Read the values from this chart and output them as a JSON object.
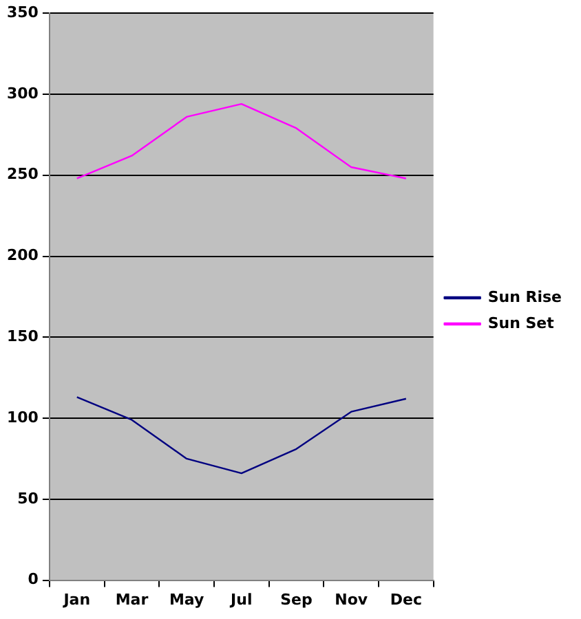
{
  "chart_data": {
    "type": "line",
    "categories": [
      "Jan",
      "Mar",
      "May",
      "Jul",
      "Sep",
      "Nov",
      "Dec"
    ],
    "series": [
      {
        "name": "Sun Rise",
        "color": "#000080",
        "values": [
          113,
          99,
          75,
          66,
          81,
          104,
          112
        ]
      },
      {
        "name": "Sun Set",
        "color": "#ff00ff",
        "values": [
          248,
          262,
          286,
          294,
          279,
          255,
          248
        ]
      }
    ],
    "ylim": [
      0,
      350
    ],
    "yticks": [
      0,
      50,
      100,
      150,
      200,
      250,
      300,
      350
    ],
    "grid": "y",
    "legend": "right",
    "marker": "none",
    "line_style": "solid"
  }
}
